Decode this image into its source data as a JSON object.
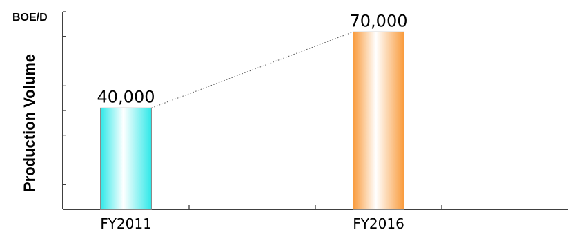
{
  "chart_data": {
    "type": "bar",
    "unit_label": "BOE/D",
    "ylabel": "Production Volume",
    "xlabel": "",
    "categories": [
      "FY2011",
      "FY2016"
    ],
    "values": [
      40000,
      70000
    ],
    "data_labels": [
      "40,000",
      "70,000"
    ],
    "bar_colors": [
      "#2ee8e8",
      "#f99a3a"
    ],
    "ylim": [
      0,
      78000
    ],
    "connector": "dotted",
    "grid": false,
    "legend": "none"
  }
}
